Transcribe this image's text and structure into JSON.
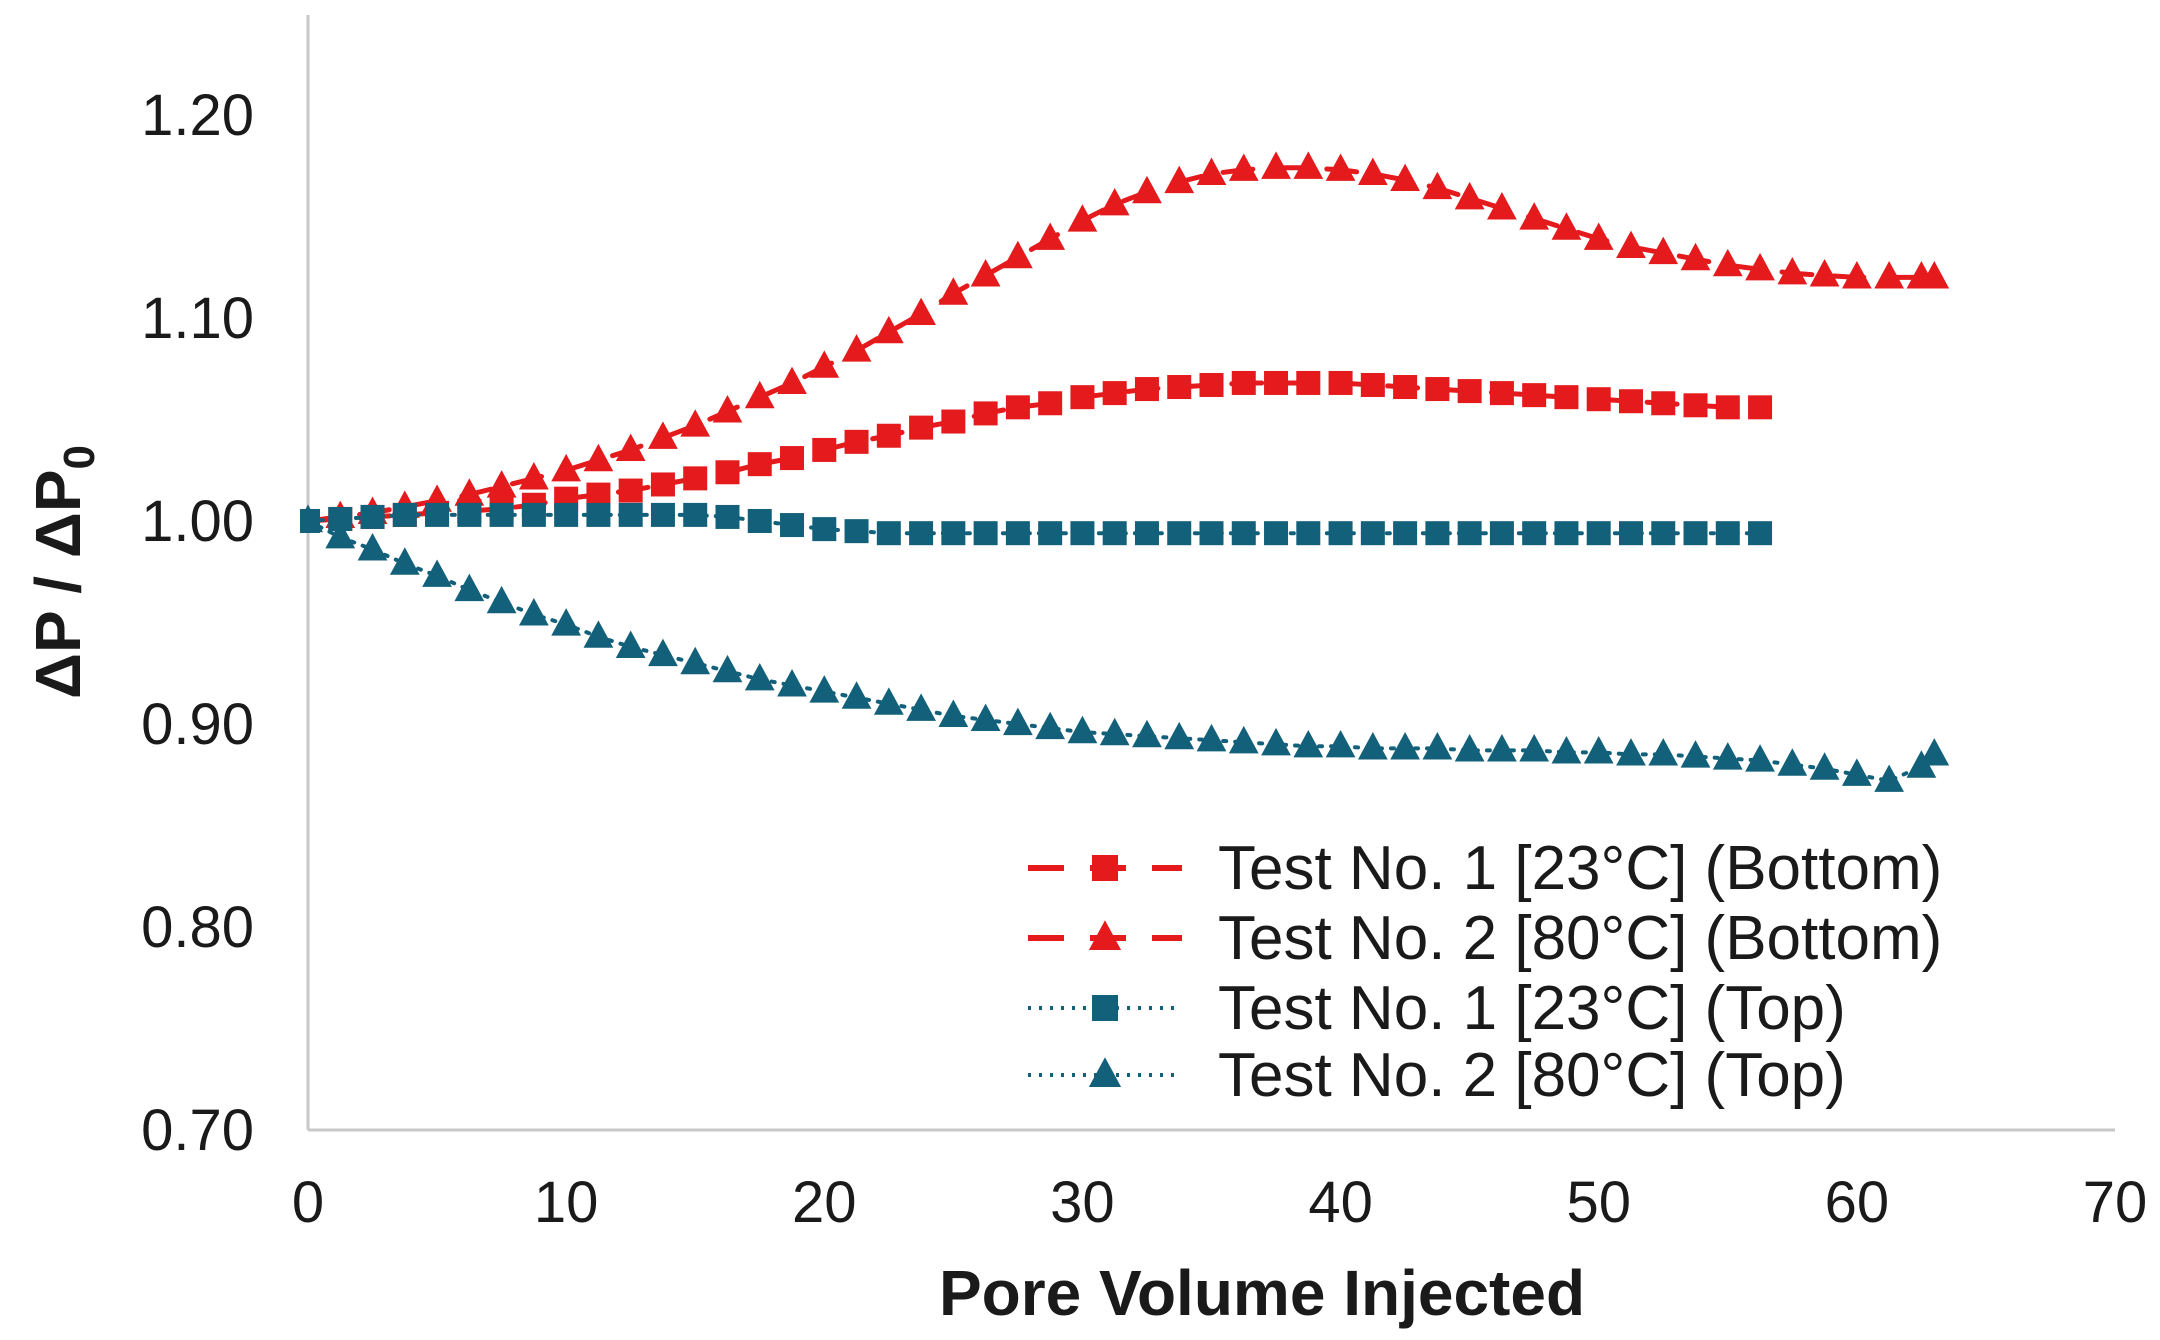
{
  "chart_data": {
    "type": "line",
    "title": "",
    "xlabel": "Pore Volume Injected",
    "ylabel_main": "ΔP / ΔP",
    "ylabel_sub": "0",
    "xlim": [
      0,
      70
    ],
    "ylim": [
      0.7,
      1.25
    ],
    "xticks": [
      0,
      10,
      20,
      30,
      40,
      50,
      60,
      70
    ],
    "xtick_labels": [
      "0",
      "10",
      "20",
      "30",
      "40",
      "50",
      "60",
      "70"
    ],
    "yticks": [
      0.7,
      0.8,
      0.9,
      1.0,
      1.1,
      1.2
    ],
    "ytick_labels": [
      "0.70",
      "0.80",
      "0.90",
      "1.00",
      "1.10",
      "1.20"
    ],
    "grid": false,
    "legend_position": "bottom-right",
    "series": [
      {
        "name": "Test No. 1 [23°C] (Bottom)",
        "color": "#e41a1c",
        "line_style": "dashed",
        "marker": "square",
        "x": [
          0,
          1.25,
          2.5,
          3.75,
          5,
          6.25,
          7.5,
          8.75,
          10,
          11.25,
          12.5,
          13.75,
          15,
          16.25,
          17.5,
          18.75,
          20,
          21.25,
          22.5,
          23.75,
          25,
          26.25,
          27.5,
          28.75,
          30,
          31.25,
          32.5,
          33.75,
          35,
          36.25,
          37.5,
          38.75,
          40,
          41.25,
          42.5,
          43.75,
          45,
          46.25,
          47.5,
          48.75,
          50,
          51.25,
          52.5,
          53.75,
          55,
          56.25
        ],
        "y": [
          1.0,
          1.001,
          1.002,
          1.003,
          1.004,
          1.005,
          1.006,
          1.008,
          1.011,
          1.013,
          1.015,
          1.018,
          1.021,
          1.024,
          1.028,
          1.031,
          1.035,
          1.039,
          1.042,
          1.046,
          1.049,
          1.053,
          1.056,
          1.058,
          1.061,
          1.063,
          1.065,
          1.066,
          1.067,
          1.068,
          1.068,
          1.068,
          1.068,
          1.067,
          1.066,
          1.065,
          1.064,
          1.063,
          1.062,
          1.061,
          1.06,
          1.059,
          1.058,
          1.057,
          1.056,
          1.056
        ]
      },
      {
        "name": "Test No. 2 [80°C] (Bottom)",
        "color": "#e41a1c",
        "line_style": "dashed",
        "marker": "triangle",
        "x": [
          0,
          1.25,
          2.5,
          3.75,
          5,
          6.25,
          7.5,
          8.75,
          10,
          11.25,
          12.5,
          13.75,
          15,
          16.25,
          17.5,
          18.75,
          20,
          21.25,
          22.5,
          23.75,
          25,
          26.25,
          27.5,
          28.75,
          30,
          31.25,
          32.5,
          33.75,
          35,
          36.25,
          37.5,
          38.75,
          40,
          41.25,
          42.5,
          43.75,
          45,
          46.25,
          47.5,
          48.75,
          50,
          51.25,
          52.5,
          53.75,
          55,
          56.25,
          57.5,
          58.75,
          60,
          61.25,
          62.5,
          63
        ],
        "y": [
          1.0,
          1.002,
          1.004,
          1.007,
          1.01,
          1.013,
          1.017,
          1.021,
          1.025,
          1.03,
          1.035,
          1.041,
          1.047,
          1.054,
          1.061,
          1.068,
          1.076,
          1.084,
          1.093,
          1.102,
          1.112,
          1.121,
          1.13,
          1.139,
          1.148,
          1.156,
          1.162,
          1.167,
          1.171,
          1.173,
          1.174,
          1.174,
          1.173,
          1.171,
          1.168,
          1.164,
          1.159,
          1.154,
          1.149,
          1.144,
          1.139,
          1.135,
          1.132,
          1.129,
          1.126,
          1.124,
          1.122,
          1.121,
          1.12,
          1.12,
          1.12,
          1.12
        ]
      },
      {
        "name": "Test No. 1 [23°C] (Top)",
        "color": "#13607a",
        "line_style": "dotted",
        "marker": "square",
        "x": [
          0,
          1.25,
          2.5,
          3.75,
          5,
          6.25,
          7.5,
          8.75,
          10,
          11.25,
          12.5,
          13.75,
          15,
          16.25,
          17.5,
          18.75,
          20,
          21.25,
          22.5,
          23.75,
          25,
          26.25,
          27.5,
          28.75,
          30,
          31.25,
          32.5,
          33.75,
          35,
          36.25,
          37.5,
          38.75,
          40,
          41.25,
          42.5,
          43.75,
          45,
          46.25,
          47.5,
          48.75,
          50,
          51.25,
          52.5,
          53.75,
          55,
          56.25
        ],
        "y": [
          1.0,
          1.001,
          1.002,
          1.003,
          1.003,
          1.003,
          1.003,
          1.003,
          1.003,
          1.003,
          1.003,
          1.003,
          1.003,
          1.002,
          1.0,
          0.998,
          0.996,
          0.995,
          0.994,
          0.994,
          0.994,
          0.994,
          0.994,
          0.994,
          0.994,
          0.994,
          0.994,
          0.994,
          0.994,
          0.994,
          0.994,
          0.994,
          0.994,
          0.994,
          0.994,
          0.994,
          0.994,
          0.994,
          0.994,
          0.994,
          0.994,
          0.994,
          0.994,
          0.994,
          0.994,
          0.994
        ]
      },
      {
        "name": "Test No. 2 [80°C] (Top)",
        "color": "#13607a",
        "line_style": "dotted",
        "marker": "triangle",
        "x": [
          0,
          1.25,
          2.5,
          3.75,
          5,
          6.25,
          7.5,
          8.75,
          10,
          11.25,
          12.5,
          13.75,
          15,
          16.25,
          17.5,
          18.75,
          20,
          21.25,
          22.5,
          23.75,
          25,
          26.25,
          27.5,
          28.75,
          30,
          31.25,
          32.5,
          33.75,
          35,
          36.25,
          37.5,
          38.75,
          40,
          41.25,
          42.5,
          43.75,
          45,
          46.25,
          47.5,
          48.75,
          50,
          51.25,
          52.5,
          53.75,
          55,
          56.25,
          57.5,
          58.75,
          60,
          61.25,
          62.5,
          63
        ],
        "y": [
          1.0,
          0.992,
          0.986,
          0.979,
          0.973,
          0.966,
          0.96,
          0.954,
          0.949,
          0.943,
          0.938,
          0.934,
          0.93,
          0.926,
          0.922,
          0.919,
          0.916,
          0.913,
          0.91,
          0.907,
          0.904,
          0.902,
          0.9,
          0.898,
          0.896,
          0.895,
          0.894,
          0.893,
          0.892,
          0.891,
          0.89,
          0.889,
          0.889,
          0.888,
          0.888,
          0.888,
          0.887,
          0.887,
          0.887,
          0.886,
          0.886,
          0.885,
          0.885,
          0.884,
          0.883,
          0.882,
          0.88,
          0.878,
          0.875,
          0.872,
          0.879,
          0.885
        ]
      }
    ]
  }
}
